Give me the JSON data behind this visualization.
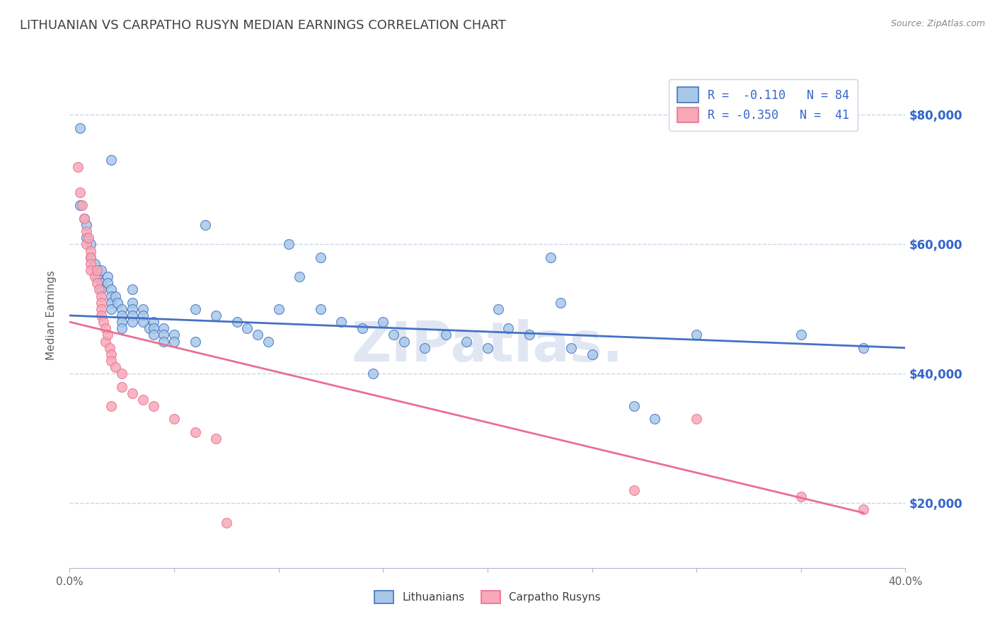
{
  "title": "LITHUANIAN VS CARPATHO RUSYN MEDIAN EARNINGS CORRELATION CHART",
  "source": "Source: ZipAtlas.com",
  "ylabel": "Median Earnings",
  "x_min": 0.0,
  "x_max": 0.4,
  "y_min": 10000,
  "y_max": 88000,
  "y_ticks": [
    20000,
    40000,
    60000,
    80000
  ],
  "y_tick_labels": [
    "$20,000",
    "$40,000",
    "$60,000",
    "$80,000"
  ],
  "x_ticks": [
    0.0,
    0.05,
    0.1,
    0.15,
    0.2,
    0.25,
    0.3,
    0.35,
    0.4
  ],
  "color_blue": "#a8c8e8",
  "color_pink": "#f8a8b8",
  "color_line_blue": "#4472c4",
  "color_line_pink": "#e87090",
  "color_title": "#404040",
  "color_axis_label": "#606060",
  "color_legend_text": "#3366cc",
  "color_right_labels": "#3366cc",
  "legend_label1": "Lithuanians",
  "legend_label2": "Carpatho Rusyns",
  "blue_scatter": [
    [
      0.005,
      78000
    ],
    [
      0.02,
      73000
    ],
    [
      0.005,
      66000
    ],
    [
      0.007,
      64000
    ],
    [
      0.008,
      63000
    ],
    [
      0.008,
      61000
    ],
    [
      0.01,
      60000
    ],
    [
      0.01,
      58000
    ],
    [
      0.012,
      57000
    ],
    [
      0.013,
      56000
    ],
    [
      0.013,
      55000
    ],
    [
      0.015,
      56000
    ],
    [
      0.015,
      54000
    ],
    [
      0.015,
      53000
    ],
    [
      0.018,
      55000
    ],
    [
      0.018,
      54000
    ],
    [
      0.02,
      53000
    ],
    [
      0.02,
      52000
    ],
    [
      0.02,
      51000
    ],
    [
      0.02,
      50000
    ],
    [
      0.022,
      52000
    ],
    [
      0.023,
      51000
    ],
    [
      0.025,
      50000
    ],
    [
      0.025,
      49000
    ],
    [
      0.025,
      48000
    ],
    [
      0.025,
      47000
    ],
    [
      0.03,
      53000
    ],
    [
      0.03,
      51000
    ],
    [
      0.03,
      50000
    ],
    [
      0.03,
      49000
    ],
    [
      0.03,
      48000
    ],
    [
      0.035,
      50000
    ],
    [
      0.035,
      49000
    ],
    [
      0.035,
      48000
    ],
    [
      0.038,
      47000
    ],
    [
      0.04,
      48000
    ],
    [
      0.04,
      47000
    ],
    [
      0.04,
      46000
    ],
    [
      0.045,
      47000
    ],
    [
      0.045,
      46000
    ],
    [
      0.045,
      45000
    ],
    [
      0.05,
      46000
    ],
    [
      0.05,
      45000
    ],
    [
      0.06,
      50000
    ],
    [
      0.06,
      45000
    ],
    [
      0.065,
      63000
    ],
    [
      0.07,
      49000
    ],
    [
      0.08,
      48000
    ],
    [
      0.085,
      47000
    ],
    [
      0.09,
      46000
    ],
    [
      0.095,
      45000
    ],
    [
      0.1,
      50000
    ],
    [
      0.105,
      60000
    ],
    [
      0.11,
      55000
    ],
    [
      0.12,
      58000
    ],
    [
      0.12,
      50000
    ],
    [
      0.13,
      48000
    ],
    [
      0.14,
      47000
    ],
    [
      0.145,
      40000
    ],
    [
      0.15,
      48000
    ],
    [
      0.155,
      46000
    ],
    [
      0.16,
      45000
    ],
    [
      0.17,
      44000
    ],
    [
      0.18,
      46000
    ],
    [
      0.19,
      45000
    ],
    [
      0.2,
      44000
    ],
    [
      0.205,
      50000
    ],
    [
      0.21,
      47000
    ],
    [
      0.22,
      46000
    ],
    [
      0.23,
      58000
    ],
    [
      0.235,
      51000
    ],
    [
      0.24,
      44000
    ],
    [
      0.25,
      43000
    ],
    [
      0.27,
      35000
    ],
    [
      0.28,
      33000
    ],
    [
      0.3,
      46000
    ],
    [
      0.35,
      46000
    ],
    [
      0.38,
      44000
    ]
  ],
  "pink_scatter": [
    [
      0.004,
      72000
    ],
    [
      0.005,
      68000
    ],
    [
      0.006,
      66000
    ],
    [
      0.007,
      64000
    ],
    [
      0.008,
      62000
    ],
    [
      0.008,
      60000
    ],
    [
      0.009,
      61000
    ],
    [
      0.01,
      59000
    ],
    [
      0.01,
      58000
    ],
    [
      0.01,
      57000
    ],
    [
      0.01,
      56000
    ],
    [
      0.012,
      55000
    ],
    [
      0.013,
      56000
    ],
    [
      0.013,
      54000
    ],
    [
      0.014,
      53000
    ],
    [
      0.015,
      52000
    ],
    [
      0.015,
      51000
    ],
    [
      0.015,
      50000
    ],
    [
      0.015,
      49000
    ],
    [
      0.016,
      48000
    ],
    [
      0.017,
      47000
    ],
    [
      0.017,
      45000
    ],
    [
      0.018,
      46000
    ],
    [
      0.019,
      44000
    ],
    [
      0.02,
      43000
    ],
    [
      0.02,
      42000
    ],
    [
      0.02,
      35000
    ],
    [
      0.022,
      41000
    ],
    [
      0.025,
      40000
    ],
    [
      0.025,
      38000
    ],
    [
      0.03,
      37000
    ],
    [
      0.035,
      36000
    ],
    [
      0.04,
      35000
    ],
    [
      0.05,
      33000
    ],
    [
      0.06,
      31000
    ],
    [
      0.07,
      30000
    ],
    [
      0.075,
      17000
    ],
    [
      0.35,
      21000
    ],
    [
      0.27,
      22000
    ],
    [
      0.3,
      33000
    ],
    [
      0.38,
      19000
    ]
  ],
  "blue_line_x": [
    0.0,
    0.4
  ],
  "blue_line_y": [
    49000,
    44000
  ],
  "pink_line_x": [
    0.0,
    0.38
  ],
  "pink_line_y": [
    48000,
    18500
  ],
  "background_color": "#ffffff",
  "grid_color": "#c8d4e8",
  "grid_style": "--"
}
